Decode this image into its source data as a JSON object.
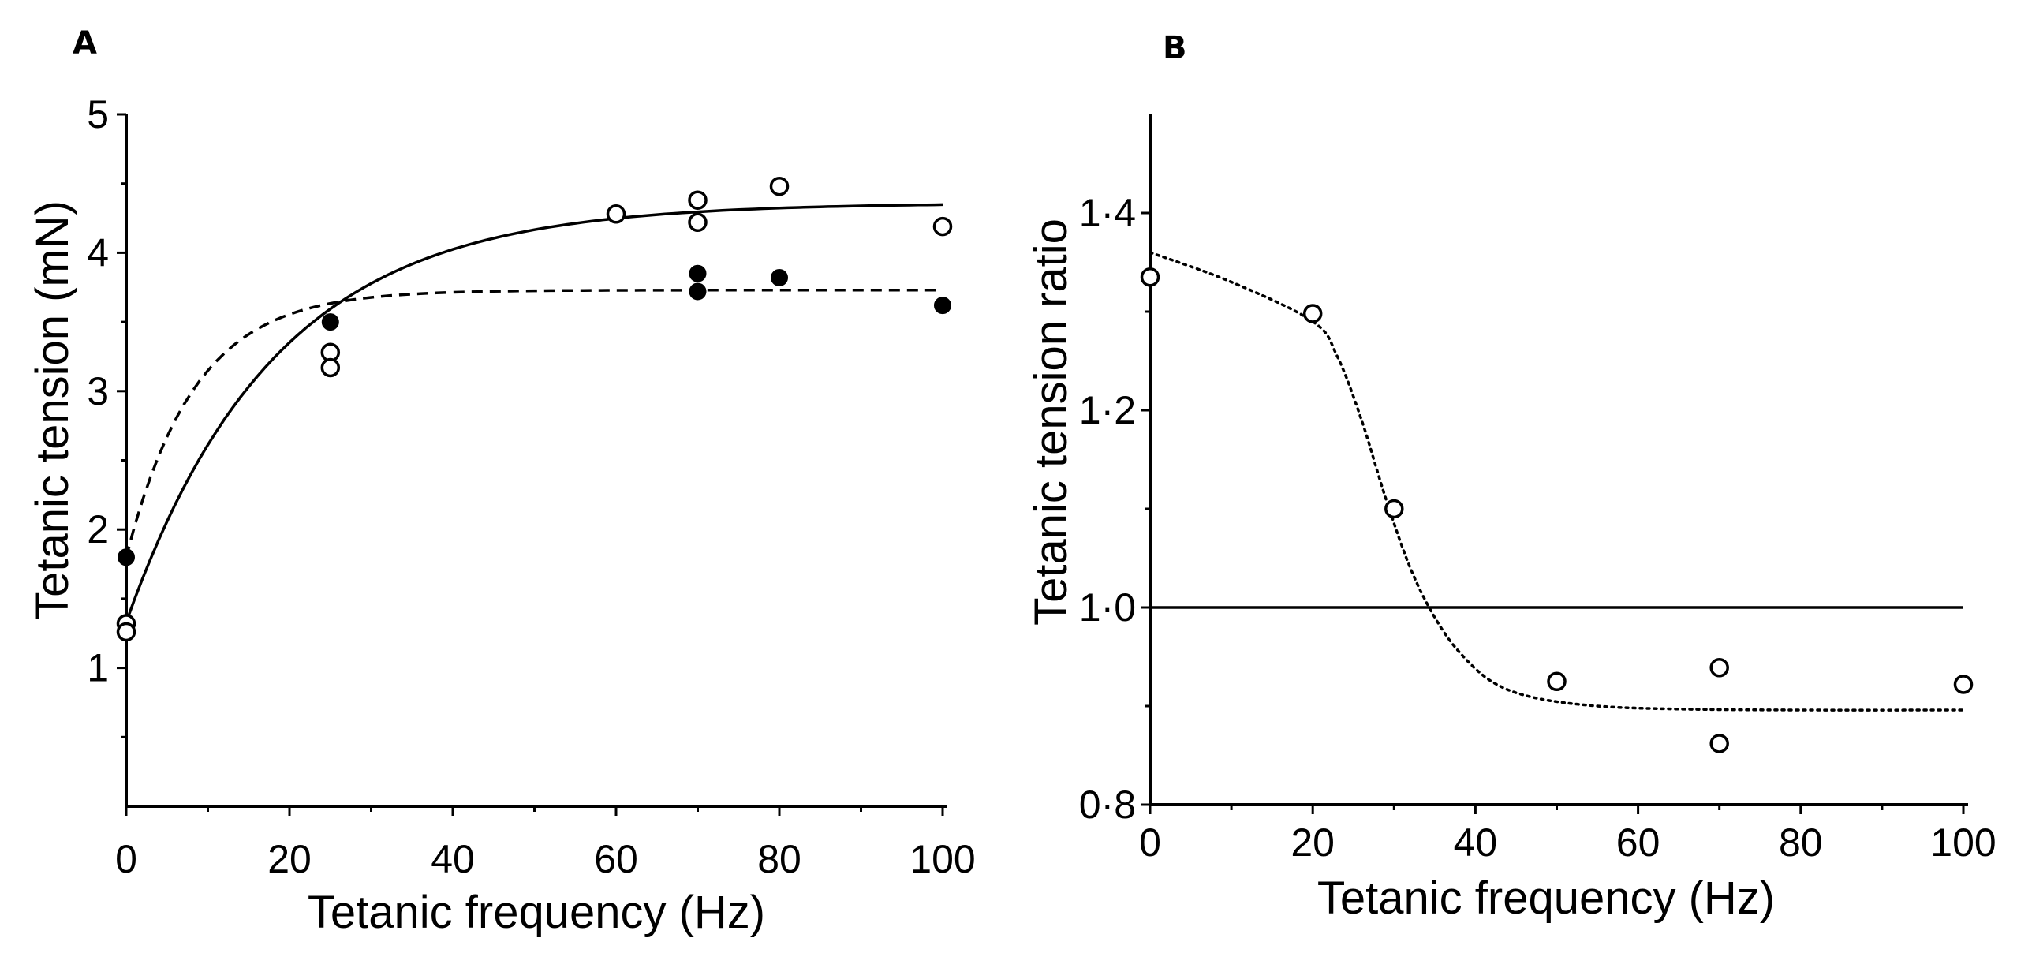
{
  "chart_data": [
    {
      "type": "scatter",
      "panel": "A",
      "xlabel": "Tetanic frequency (Hz)",
      "ylabel": "Tetanic tension (mN)",
      "xlim": [
        0,
        100
      ],
      "ylim": [
        0,
        5
      ],
      "xticks": [
        0,
        20,
        40,
        60,
        80,
        100
      ],
      "xtick_labels": [
        "0",
        "20",
        "40",
        "60",
        "80",
        "100"
      ],
      "yticks": [
        1,
        2,
        3,
        4,
        5
      ],
      "ytick_labels": [
        "1",
        "2",
        "3",
        "4",
        "5"
      ],
      "grid": false,
      "series": [
        {
          "name": "open circles",
          "marker": "open",
          "fit": "solid",
          "points": [
            {
              "x": 0,
              "y": 1.32
            },
            {
              "x": 0,
              "y": 1.26
            },
            {
              "x": 25,
              "y": 3.28
            },
            {
              "x": 25,
              "y": 3.17
            },
            {
              "x": 60,
              "y": 4.28
            },
            {
              "x": 70,
              "y": 4.38
            },
            {
              "x": 70,
              "y": 4.22
            },
            {
              "x": 80,
              "y": 4.48
            },
            {
              "x": 100,
              "y": 4.19
            }
          ],
          "fit_curve": {
            "model": "exponential_rise",
            "y0": 1.33,
            "ymax": 4.36,
            "rate": 0.055
          }
        },
        {
          "name": "filled circles",
          "marker": "filled",
          "fit": "dashed",
          "points": [
            {
              "x": 0,
              "y": 1.8
            },
            {
              "x": 25,
              "y": 3.5
            },
            {
              "x": 70,
              "y": 3.85
            },
            {
              "x": 70,
              "y": 3.72
            },
            {
              "x": 80,
              "y": 3.82
            },
            {
              "x": 100,
              "y": 3.62
            }
          ],
          "fit_curve": {
            "model": "exponential_rise",
            "y0": 1.8,
            "ymax": 3.73,
            "rate": 0.12
          }
        }
      ]
    },
    {
      "type": "scatter",
      "panel": "B",
      "xlabel": "Tetanic frequency (Hz)",
      "ylabel": "Tetanic tension ratio",
      "xlim": [
        0,
        100
      ],
      "ylim": [
        0.8,
        1.5
      ],
      "xticks": [
        0,
        20,
        40,
        60,
        80,
        100
      ],
      "xtick_labels": [
        "0",
        "20",
        "40",
        "60",
        "80",
        "100"
      ],
      "yticks": [
        0.8,
        1.0,
        1.2,
        1.4
      ],
      "ytick_labels": [
        "0·8",
        "1·0",
        "1·2",
        "1·4"
      ],
      "grid": false,
      "reference_line": 1.0,
      "series": [
        {
          "name": "ratio",
          "marker": "open",
          "fit": "dotted",
          "points": [
            {
              "x": 0,
              "y": 1.335
            },
            {
              "x": 20,
              "y": 1.298
            },
            {
              "x": 30,
              "y": 1.1
            },
            {
              "x": 50,
              "y": 0.925
            },
            {
              "x": 70,
              "y": 0.939
            },
            {
              "x": 70,
              "y": 0.862
            },
            {
              "x": 100,
              "y": 0.922
            }
          ],
          "fit_curve": [
            {
              "x": 0,
              "y": 1.36
            },
            {
              "x": 10,
              "y": 1.33
            },
            {
              "x": 20,
              "y": 1.29
            },
            {
              "x": 23,
              "y": 1.255
            },
            {
              "x": 26,
              "y": 1.19
            },
            {
              "x": 29,
              "y": 1.11
            },
            {
              "x": 32,
              "y": 1.04
            },
            {
              "x": 35,
              "y": 0.99
            },
            {
              "x": 38,
              "y": 0.955
            },
            {
              "x": 42,
              "y": 0.925
            },
            {
              "x": 47,
              "y": 0.909
            },
            {
              "x": 55,
              "y": 0.9
            },
            {
              "x": 65,
              "y": 0.897
            },
            {
              "x": 80,
              "y": 0.896
            },
            {
              "x": 100,
              "y": 0.896
            }
          ]
        }
      ]
    }
  ]
}
